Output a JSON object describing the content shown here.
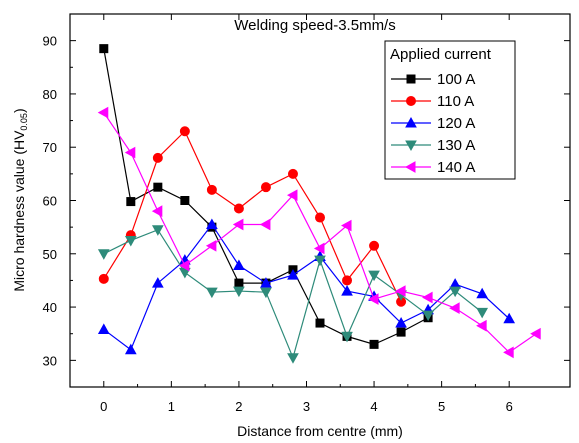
{
  "chart_data": {
    "type": "line",
    "title": "Welding speed-3.5mm/s",
    "xlabel": "Distance from centre (mm)",
    "ylabel": "Micro hardness value (HV",
    "ylabel_sub": "0.05",
    "ylabel_end": ")",
    "xlim": [
      -0.5,
      6.9
    ],
    "ylim": [
      25,
      95
    ],
    "xticks": [
      "0",
      "1",
      "2",
      "3",
      "4",
      "5",
      "6"
    ],
    "yticks": [
      "30",
      "40",
      "50",
      "60",
      "70",
      "80",
      "90"
    ],
    "legend_title": "Applied current",
    "legend_position": "top-right",
    "series": [
      {
        "name": "100 A",
        "color": "#000000",
        "marker": "square",
        "x": [
          0,
          0.4,
          0.8,
          1.2,
          1.6,
          2.0,
          2.4,
          2.8,
          3.2,
          3.6,
          4.0,
          4.4,
          4.8
        ],
        "y": [
          88.5,
          59.8,
          62.5,
          60.0,
          55.0,
          44.5,
          44.5,
          47.0,
          37.0,
          34.5,
          33.0,
          35.3,
          38.0
        ]
      },
      {
        "name": "110 A",
        "color": "#ff0000",
        "marker": "circle",
        "x": [
          0,
          0.4,
          0.8,
          1.2,
          1.6,
          2.0,
          2.4,
          2.8,
          3.2,
          3.6,
          4.0,
          4.4
        ],
        "y": [
          45.3,
          53.5,
          68.0,
          73.0,
          62.0,
          58.5,
          62.5,
          65.0,
          56.8,
          45.0,
          51.5,
          41.0
        ]
      },
      {
        "name": "120 A",
        "color": "#0000ff",
        "marker": "triangle-up",
        "x": [
          0,
          0.4,
          0.8,
          1.2,
          1.6,
          2.0,
          2.4,
          2.8,
          3.2,
          3.6,
          4.0,
          4.4,
          4.8,
          5.2,
          5.6,
          6.0
        ],
        "y": [
          35.8,
          32.0,
          44.5,
          48.8,
          55.5,
          47.8,
          44.5,
          46.0,
          49.5,
          43.0,
          42.0,
          37.0,
          39.5,
          44.3,
          42.5,
          37.8
        ]
      },
      {
        "name": "130 A",
        "color": "#2e8b7a",
        "marker": "triangle-down",
        "x": [
          0,
          0.4,
          0.8,
          1.2,
          1.6,
          2.0,
          2.4,
          2.8,
          3.2,
          3.6,
          4.0,
          4.4,
          4.8,
          5.2,
          5.6
        ],
        "y": [
          50.0,
          52.5,
          54.5,
          46.5,
          42.8,
          43.0,
          42.8,
          30.5,
          48.8,
          34.5,
          46.0,
          42.3,
          38.5,
          43.0,
          39.0
        ]
      },
      {
        "name": "140 A",
        "color": "#ff00ff",
        "marker": "triangle-left",
        "x": [
          0,
          0.4,
          0.8,
          1.2,
          1.6,
          2.0,
          2.4,
          2.8,
          3.2,
          3.6,
          4.0,
          4.4,
          4.8,
          5.2,
          5.6,
          6.0,
          6.4
        ],
        "y": [
          76.5,
          69.0,
          58.0,
          47.8,
          51.5,
          55.5,
          55.5,
          61.0,
          51.0,
          55.3,
          41.5,
          43.0,
          41.8,
          39.8,
          36.5,
          31.5,
          35.0
        ]
      }
    ]
  }
}
